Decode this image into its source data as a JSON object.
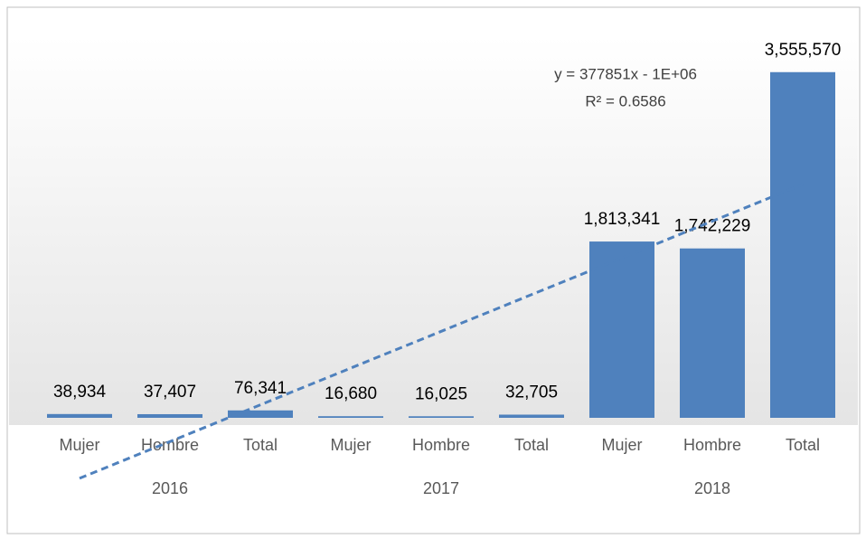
{
  "chart_data": {
    "type": "bar",
    "categories": [
      "Mujer",
      "Hombre",
      "Total",
      "Mujer",
      "Hombre",
      "Total",
      "Mujer",
      "Hombre",
      "Total"
    ],
    "category_groups": [
      "2016",
      "2017",
      "2018"
    ],
    "values": [
      38934,
      37407,
      76341,
      16680,
      16025,
      32705,
      1813341,
      1742229,
      3555570
    ],
    "value_labels": [
      "38,934",
      "37,407",
      "76,341",
      "16,680",
      "16,025",
      "32,705",
      "1,813,341",
      "1,742,229",
      "3,555,570"
    ],
    "color": "#4f81bd",
    "ylim": [
      0,
      4000000
    ],
    "trendline": {
      "equation": "y = 377851x - 1E+06",
      "r_squared": "R² = 0.6586",
      "slope": 377851,
      "intercept": -1000000,
      "color": "#4f81bd"
    }
  }
}
